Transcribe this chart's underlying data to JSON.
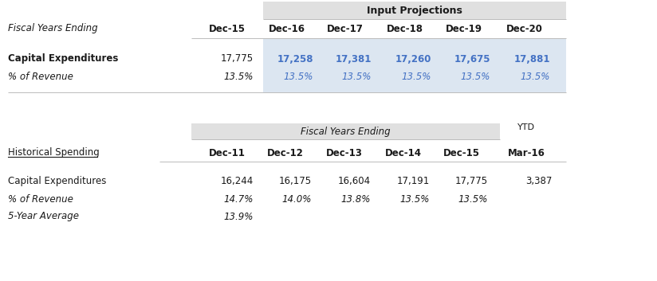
{
  "input_projections_header": "Input Projections",
  "fiscal_years_ending_label": "Fiscal Years Ending",
  "proj_columns": [
    "Dec-15",
    "Dec-16",
    "Dec-17",
    "Dec-18",
    "Dec-19",
    "Dec-20"
  ],
  "proj_capex_label": "Capital Expenditures",
  "proj_pct_label": "% of Revenue",
  "proj_capex_values": [
    "17,775",
    "17,258",
    "17,381",
    "17,260",
    "17,675",
    "17,881"
  ],
  "proj_pct_values": [
    "13.5%",
    "13.5%",
    "13.5%",
    "13.5%",
    "13.5%",
    "13.5%"
  ],
  "hist_group_header": "Fiscal Years Ending",
  "hist_ytd_header": "YTD",
  "hist_section_label": "Historical Spending",
  "hist_columns": [
    "Dec-11",
    "Dec-12",
    "Dec-13",
    "Dec-14",
    "Dec-15"
  ],
  "hist_ytd_column": "Mar-16",
  "hist_capex_label": "Capital Expenditures",
  "hist_pct_label": "% of Revenue",
  "hist_avg_label": "5-Year Average",
  "hist_capex_values": [
    "16,244",
    "16,175",
    "16,604",
    "17,191",
    "17,775",
    "3,387"
  ],
  "hist_pct_values": [
    "14.7%",
    "14.0%",
    "13.8%",
    "13.5%",
    "13.5%",
    ""
  ],
  "hist_avg_values": [
    "13.9%",
    "",
    "",
    "",
    "",
    ""
  ],
  "blue_color": "#4472C4",
  "black_color": "#1a1a1a",
  "gray_bg": "#E0E0E0",
  "light_blue_bg": "#DCE6F1",
  "white_bg": "#FFFFFF"
}
